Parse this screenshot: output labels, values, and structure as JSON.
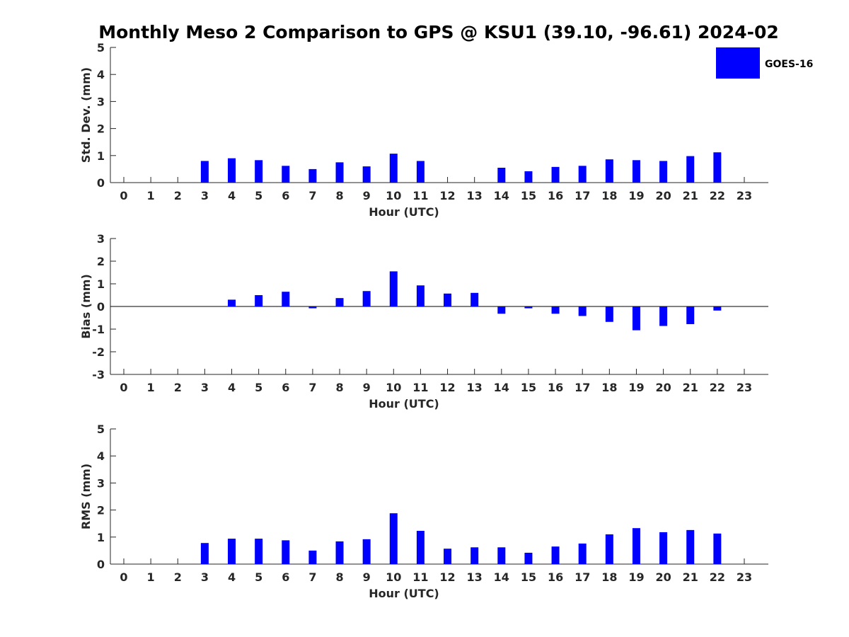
{
  "chart_data": {
    "type": "bar",
    "title": "Monthly Meso 2 Comparison to GPS @ KSU1 (39.10, -96.61) 2024-02",
    "legend": {
      "entries": [
        "GOES-16"
      ],
      "placement": "top-right",
      "color": "#0000ff"
    },
    "bar_color": "#0000ff",
    "grid": false,
    "panels": [
      {
        "id": "std",
        "xlabel": "Hour (UTC)",
        "ylabel": "Std. Dev. (mm)",
        "ylim": [
          0,
          5
        ],
        "yticks": [
          0,
          1,
          2,
          3,
          4,
          5
        ],
        "categories": [
          "0",
          "1",
          "2",
          "3",
          "4",
          "5",
          "6",
          "7",
          "8",
          "9",
          "10",
          "11",
          "12",
          "13",
          "14",
          "15",
          "16",
          "17",
          "18",
          "19",
          "20",
          "21",
          "22",
          "23"
        ],
        "series": [
          {
            "name": "GOES-16",
            "values": [
              null,
              null,
              null,
              0.8,
              0.9,
              0.83,
              0.62,
              0.5,
              0.75,
              0.6,
              1.07,
              0.8,
              null,
              null,
              0.55,
              0.42,
              0.58,
              0.62,
              0.86,
              0.83,
              0.8,
              0.98,
              1.12,
              null
            ]
          }
        ]
      },
      {
        "id": "bias",
        "xlabel": "Hour (UTC)",
        "ylabel": "Bias (mm)",
        "ylim": [
          -3,
          3
        ],
        "yticks": [
          -3,
          -2,
          -1,
          0,
          1,
          2,
          3
        ],
        "zero_line": true,
        "categories": [
          "0",
          "1",
          "2",
          "3",
          "4",
          "5",
          "6",
          "7",
          "8",
          "9",
          "10",
          "11",
          "12",
          "13",
          "14",
          "15",
          "16",
          "17",
          "18",
          "19",
          "20",
          "21",
          "22",
          "23"
        ],
        "series": [
          {
            "name": "GOES-16",
            "values": [
              null,
              null,
              null,
              null,
              0.3,
              0.5,
              0.65,
              -0.08,
              0.37,
              0.68,
              1.55,
              0.93,
              0.57,
              0.6,
              -0.32,
              -0.08,
              -0.32,
              -0.42,
              -0.68,
              -1.05,
              -0.86,
              -0.78,
              -0.18,
              null
            ]
          }
        ]
      },
      {
        "id": "rms",
        "xlabel": "Hour (UTC)",
        "ylabel": "RMS (mm)",
        "ylim": [
          0,
          5
        ],
        "yticks": [
          0,
          1,
          2,
          3,
          4,
          5
        ],
        "categories": [
          "0",
          "1",
          "2",
          "3",
          "4",
          "5",
          "6",
          "7",
          "8",
          "9",
          "10",
          "11",
          "12",
          "13",
          "14",
          "15",
          "16",
          "17",
          "18",
          "19",
          "20",
          "21",
          "22",
          "23"
        ],
        "series": [
          {
            "name": "GOES-16",
            "values": [
              null,
              null,
              null,
              0.78,
              0.94,
              0.94,
              0.88,
              0.5,
              0.84,
              0.92,
              1.88,
              1.23,
              0.57,
              0.62,
              0.62,
              0.42,
              0.65,
              0.76,
              1.1,
              1.33,
              1.18,
              1.26,
              1.13,
              null
            ]
          }
        ]
      }
    ]
  }
}
